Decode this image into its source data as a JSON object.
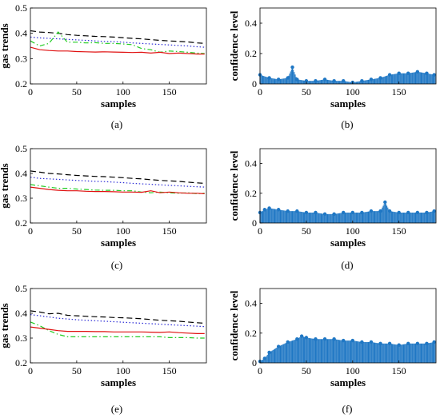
{
  "figure": {
    "panels": [
      {
        "id": "a",
        "caption": "(a)"
      },
      {
        "id": "b",
        "caption": "(b)"
      },
      {
        "id": "c",
        "caption": "(c)"
      },
      {
        "id": "d",
        "caption": "(d)"
      },
      {
        "id": "e",
        "caption": "(e)"
      },
      {
        "id": "f",
        "caption": "(f)"
      }
    ]
  },
  "colors": {
    "black_dashed": "#000000",
    "blue_dotted": "#2b2bd6",
    "green_dashdot": "#22cc22",
    "red_solid": "#e01010",
    "bar": "#1f77c4",
    "axis": "#000000"
  },
  "chart_data": [
    {
      "panel": "a",
      "type": "line",
      "xlabel": "samples",
      "ylabel": "gas trends",
      "xlim": [
        0,
        190
      ],
      "ylim": [
        0.2,
        0.5
      ],
      "xticks": [
        0,
        50,
        100,
        150
      ],
      "yticks": [
        0.2,
        0.3,
        0.4,
        0.5
      ],
      "x": [
        0,
        10,
        20,
        30,
        40,
        50,
        60,
        70,
        80,
        90,
        100,
        110,
        120,
        130,
        140,
        150,
        160,
        170,
        180,
        188
      ],
      "series": [
        {
          "style": "black-dashed",
          "values": [
            0.41,
            0.405,
            0.403,
            0.4,
            0.395,
            0.392,
            0.39,
            0.388,
            0.387,
            0.385,
            0.383,
            0.38,
            0.378,
            0.375,
            0.372,
            0.37,
            0.368,
            0.366,
            0.362,
            0.36
          ]
        },
        {
          "style": "blue-dotted",
          "values": [
            0.385,
            0.382,
            0.38,
            0.378,
            0.376,
            0.374,
            0.372,
            0.37,
            0.368,
            0.367,
            0.365,
            0.362,
            0.36,
            0.358,
            0.356,
            0.354,
            0.352,
            0.35,
            0.347,
            0.345
          ]
        },
        {
          "style": "green-dashdot",
          "values": [
            0.37,
            0.35,
            0.36,
            0.405,
            0.365,
            0.365,
            0.362,
            0.363,
            0.36,
            0.36,
            0.358,
            0.355,
            0.34,
            0.335,
            0.325,
            0.33,
            0.328,
            0.325,
            0.322,
            0.32
          ]
        },
        {
          "style": "red-solid",
          "values": [
            0.345,
            0.335,
            0.332,
            0.33,
            0.33,
            0.328,
            0.327,
            0.326,
            0.327,
            0.326,
            0.325,
            0.324,
            0.325,
            0.322,
            0.325,
            0.32,
            0.322,
            0.32,
            0.318,
            0.318
          ]
        }
      ]
    },
    {
      "panel": "b",
      "type": "bar",
      "xlabel": "samples",
      "ylabel": "confidence level",
      "xlim": [
        0,
        190
      ],
      "ylim": [
        0,
        0.5
      ],
      "xticks": [
        0,
        50,
        100,
        150
      ],
      "yticks": [
        0,
        0.2,
        0.4
      ],
      "x": [
        0,
        10,
        20,
        30,
        35,
        40,
        50,
        60,
        70,
        80,
        90,
        100,
        110,
        120,
        130,
        140,
        150,
        160,
        170,
        180,
        188
      ],
      "values": [
        0.06,
        0.04,
        0.03,
        0.04,
        0.11,
        0.03,
        0.02,
        0.02,
        0.03,
        0.02,
        0.02,
        0.01,
        0.02,
        0.03,
        0.04,
        0.06,
        0.07,
        0.07,
        0.08,
        0.07,
        0.06
      ]
    },
    {
      "panel": "c",
      "type": "line",
      "xlabel": "samples",
      "ylabel": "gas trends",
      "xlim": [
        0,
        190
      ],
      "ylim": [
        0.2,
        0.5
      ],
      "xticks": [
        0,
        50,
        100,
        150
      ],
      "yticks": [
        0.2,
        0.3,
        0.4,
        0.5
      ],
      "x": [
        0,
        10,
        20,
        30,
        40,
        50,
        60,
        70,
        80,
        90,
        100,
        110,
        120,
        130,
        140,
        150,
        160,
        170,
        180,
        188
      ],
      "series": [
        {
          "style": "black-dashed",
          "values": [
            0.41,
            0.405,
            0.4,
            0.398,
            0.395,
            0.392,
            0.39,
            0.388,
            0.387,
            0.385,
            0.383,
            0.38,
            0.378,
            0.375,
            0.372,
            0.37,
            0.368,
            0.365,
            0.362,
            0.36
          ]
        },
        {
          "style": "blue-dotted",
          "values": [
            0.385,
            0.38,
            0.378,
            0.376,
            0.374,
            0.372,
            0.37,
            0.368,
            0.367,
            0.365,
            0.363,
            0.36,
            0.358,
            0.356,
            0.354,
            0.352,
            0.35,
            0.348,
            0.346,
            0.345
          ]
        },
        {
          "style": "green-dashdot",
          "values": [
            0.355,
            0.35,
            0.345,
            0.34,
            0.34,
            0.337,
            0.335,
            0.333,
            0.332,
            0.332,
            0.33,
            0.33,
            0.325,
            0.322,
            0.325,
            0.322,
            0.32,
            0.322,
            0.318,
            0.32
          ]
        },
        {
          "style": "red-solid",
          "values": [
            0.345,
            0.34,
            0.335,
            0.332,
            0.33,
            0.33,
            0.328,
            0.327,
            0.327,
            0.326,
            0.325,
            0.325,
            0.324,
            0.33,
            0.322,
            0.325,
            0.322,
            0.32,
            0.32,
            0.318
          ]
        }
      ]
    },
    {
      "panel": "d",
      "type": "bar",
      "xlabel": "samples",
      "ylabel": "confidence level",
      "xlim": [
        0,
        190
      ],
      "ylim": [
        0,
        0.5
      ],
      "xticks": [
        0,
        50,
        100,
        150
      ],
      "yticks": [
        0,
        0.2,
        0.4
      ],
      "x": [
        0,
        5,
        10,
        20,
        30,
        40,
        50,
        60,
        70,
        80,
        90,
        100,
        110,
        120,
        130,
        135,
        140,
        150,
        160,
        170,
        180,
        188
      ],
      "values": [
        0.07,
        0.09,
        0.1,
        0.09,
        0.08,
        0.08,
        0.07,
        0.07,
        0.06,
        0.06,
        0.07,
        0.07,
        0.07,
        0.08,
        0.08,
        0.14,
        0.08,
        0.07,
        0.07,
        0.07,
        0.07,
        0.08
      ]
    },
    {
      "panel": "e",
      "type": "line",
      "xlabel": "samples",
      "ylabel": "gas trends",
      "xlim": [
        0,
        190
      ],
      "ylim": [
        0.2,
        0.5
      ],
      "xticks": [
        0,
        50,
        100,
        150
      ],
      "yticks": [
        0.2,
        0.3,
        0.4,
        0.5
      ],
      "x": [
        0,
        10,
        20,
        30,
        40,
        50,
        60,
        70,
        80,
        90,
        100,
        110,
        120,
        130,
        140,
        150,
        160,
        170,
        180,
        188
      ],
      "series": [
        {
          "style": "black-dashed",
          "values": [
            0.41,
            0.405,
            0.398,
            0.4,
            0.392,
            0.39,
            0.388,
            0.386,
            0.385,
            0.383,
            0.382,
            0.38,
            0.378,
            0.375,
            0.372,
            0.37,
            0.368,
            0.365,
            0.362,
            0.36
          ]
        },
        {
          "style": "blue-dotted",
          "values": [
            0.395,
            0.39,
            0.385,
            0.38,
            0.377,
            0.374,
            0.372,
            0.37,
            0.368,
            0.366,
            0.364,
            0.362,
            0.36,
            0.358,
            0.356,
            0.354,
            0.352,
            0.35,
            0.348,
            0.346
          ]
        },
        {
          "style": "green-dashdot",
          "values": [
            0.365,
            0.35,
            0.33,
            0.315,
            0.305,
            0.305,
            0.305,
            0.305,
            0.305,
            0.305,
            0.305,
            0.305,
            0.305,
            0.305,
            0.305,
            0.302,
            0.302,
            0.302,
            0.3,
            0.3
          ]
        },
        {
          "style": "red-solid",
          "values": [
            0.345,
            0.34,
            0.335,
            0.33,
            0.327,
            0.327,
            0.327,
            0.326,
            0.326,
            0.325,
            0.325,
            0.325,
            0.325,
            0.324,
            0.323,
            0.325,
            0.322,
            0.32,
            0.318,
            0.318
          ]
        }
      ]
    },
    {
      "panel": "f",
      "type": "bar",
      "xlabel": "samples",
      "ylabel": "confidence level",
      "xlim": [
        0,
        190
      ],
      "ylim": [
        0,
        0.5
      ],
      "xticks": [
        0,
        50,
        100,
        150
      ],
      "yticks": [
        0,
        0.2,
        0.4
      ],
      "x": [
        0,
        5,
        10,
        20,
        30,
        40,
        45,
        50,
        60,
        70,
        80,
        90,
        100,
        110,
        120,
        130,
        140,
        150,
        160,
        170,
        180,
        188
      ],
      "values": [
        0.01,
        0.03,
        0.07,
        0.11,
        0.14,
        0.16,
        0.18,
        0.17,
        0.16,
        0.16,
        0.16,
        0.15,
        0.15,
        0.14,
        0.14,
        0.13,
        0.13,
        0.12,
        0.13,
        0.13,
        0.13,
        0.14
      ]
    }
  ]
}
